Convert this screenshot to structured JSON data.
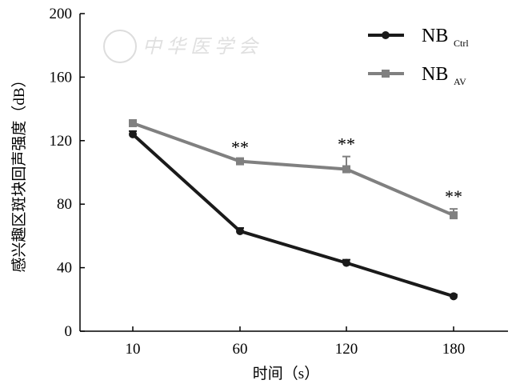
{
  "chart_data": {
    "type": "line",
    "title": "",
    "xlabel": "时间（s）",
    "ylabel": "感兴趣区斑块回声强度（dB）",
    "categories": [
      "10",
      "60",
      "120",
      "180"
    ],
    "ylim": [
      0,
      200
    ],
    "yticks": [
      "0",
      "40",
      "80",
      "120",
      "160",
      "200"
    ],
    "grid": false,
    "legend_position": "top-right",
    "series": [
      {
        "name": "NB",
        "sub": "Ctrl",
        "color": "#1a1a1a",
        "marker": "circle",
        "values": [
          124,
          63,
          43,
          22
        ],
        "errors": [
          2,
          2,
          2,
          1
        ]
      },
      {
        "name": "NB",
        "sub": "AV",
        "color": "#808080",
        "marker": "square",
        "values": [
          131,
          107,
          102,
          73
        ],
        "errors": [
          1,
          1,
          8,
          4
        ]
      }
    ],
    "annotations": [
      {
        "category": "60",
        "text": "**"
      },
      {
        "category": "120",
        "text": "**"
      },
      {
        "category": "180",
        "text": "**"
      }
    ]
  },
  "watermark": "中华医学会"
}
